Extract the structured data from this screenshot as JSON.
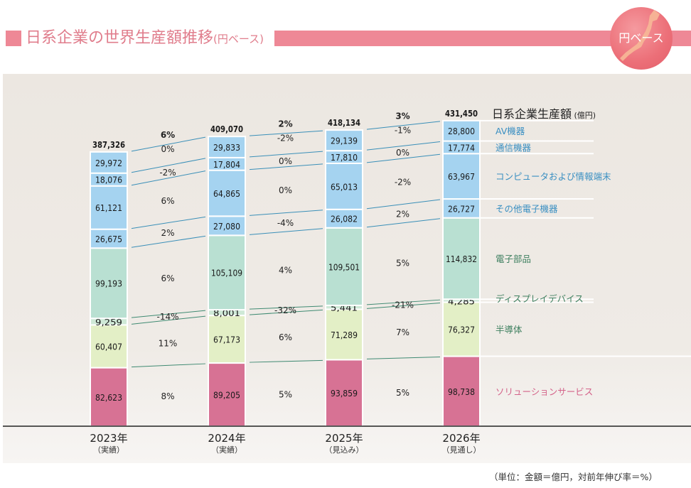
{
  "header": {
    "title": "日系企業の世界生産額推移",
    "title_suffix": "(円ベース)",
    "badge": "円ベース"
  },
  "footnote": "（単位：金額＝億円，対前年伸び率＝%）",
  "colors": {
    "title": "#e07d8c",
    "blue_segment": "#a5d3f0",
    "teal_segment": "#b9e0d2",
    "display_segment": "#cfe9d7",
    "semi_segment": "#e3efc6",
    "solution_segment": "#d77294",
    "blue_label": "#3a8fc2",
    "green_label": "#3f8060",
    "pink_label": "#d4638a"
  },
  "chart_data": {
    "type": "bar",
    "stacked": true,
    "title": "日系企業の世界生産額推移(円ベース)",
    "total_label": "日系企業生産額",
    "total_unit": "(億円)",
    "categories": [
      "2023年",
      "2024年",
      "2025年",
      "2026年"
    ],
    "category_notes": [
      "（実績）",
      "（実績）",
      "（見込み）",
      "（見通し）"
    ],
    "totals": [
      "387,326",
      "409,070",
      "418,134",
      "431,450"
    ],
    "totals_values": [
      387326,
      409070,
      418134,
      431450
    ],
    "series": [
      {
        "name": "ソリューションサービス",
        "group": "pink",
        "values": [
          82623,
          89205,
          93859,
          98738
        ],
        "labels": [
          "82,623",
          "89,205",
          "93,859",
          "98,738"
        ],
        "growth": [
          "8%",
          "5%",
          "5%"
        ]
      },
      {
        "name": "半導体",
        "group": "green",
        "values": [
          60407,
          67173,
          71289,
          76327
        ],
        "labels": [
          "60,407",
          "67,173",
          "71,289",
          "76,327"
        ],
        "growth": [
          "11%",
          "6%",
          "7%"
        ]
      },
      {
        "name": "ディスプレイデバイス",
        "group": "green",
        "values": [
          9259,
          8001,
          5441,
          4285
        ],
        "labels": [
          "9,259",
          "8,001",
          "5,441",
          "4,285"
        ],
        "growth": [
          "-14%",
          "-32%",
          "-21%"
        ]
      },
      {
        "name": "電子部品",
        "group": "green",
        "values": [
          99193,
          105109,
          109501,
          114832
        ],
        "labels": [
          "99,193",
          "105,109",
          "109,501",
          "114,832"
        ],
        "growth": [
          "6%",
          "4%",
          "5%"
        ]
      },
      {
        "name": "その他電子機器",
        "group": "blue",
        "values": [
          26675,
          27080,
          26082,
          26727
        ],
        "labels": [
          "26,675",
          "27,080",
          "26,082",
          "26,727"
        ],
        "growth": [
          "2%",
          "-4%",
          "2%"
        ]
      },
      {
        "name": "コンピュータおよび情報端末",
        "group": "blue",
        "values": [
          61121,
          64865,
          65013,
          63967
        ],
        "labels": [
          "61,121",
          "64,865",
          "65,013",
          "63,967"
        ],
        "growth": [
          "6%",
          "0%",
          "-2%"
        ]
      },
      {
        "name": "通信機器",
        "group": "blue",
        "values": [
          18076,
          17804,
          17810,
          17774
        ],
        "labels": [
          "18,076",
          "17,804",
          "17,810",
          "17,774"
        ],
        "growth": [
          "-2%",
          "0%",
          "0%"
        ]
      },
      {
        "name": "AV機器",
        "group": "blue",
        "values": [
          29972,
          29833,
          29139,
          28800
        ],
        "labels": [
          "29,972",
          "29,833",
          "29,139",
          "28,800"
        ],
        "growth": [
          "0%",
          "-2%",
          "-1%"
        ]
      }
    ],
    "total_growth": [
      "6%",
      "2%",
      "3%"
    ],
    "ylabel": "億円",
    "xlabel": "",
    "ylim": [
      0,
      440000
    ],
    "grid": false,
    "legend": "right"
  }
}
